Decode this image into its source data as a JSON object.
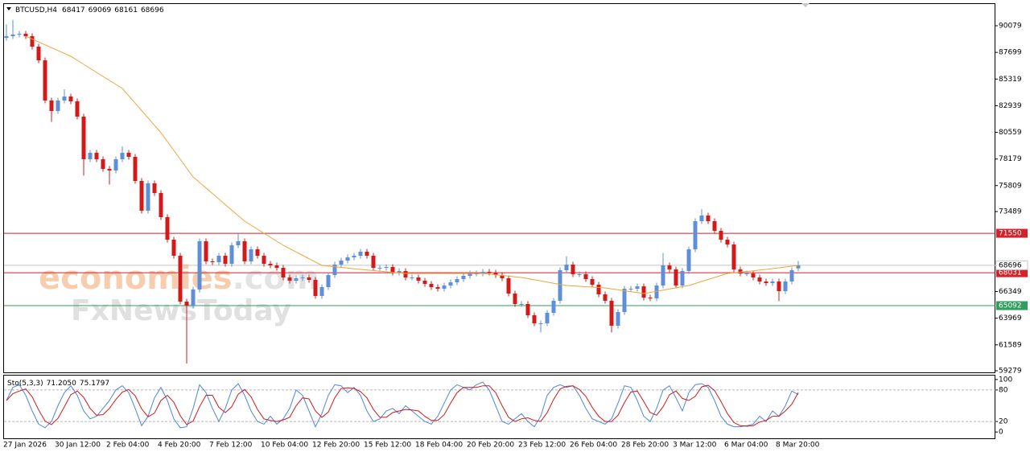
{
  "header": {
    "symbol": "BTCUSD,H4"
  },
  "watermark": {
    "brand": "economies",
    "suffix": ".com",
    "subtitle": "FxNewsToday"
  },
  "chart_data": [
    {
      "type": "candlestick",
      "categories": [
        "27 Jan 2026",
        null,
        null,
        null,
        null,
        null,
        null,
        null,
        "30 Jan 12:00",
        null,
        null,
        null,
        null,
        null,
        null,
        null,
        "2 Feb 04:00",
        null,
        null,
        null,
        null,
        null,
        null,
        null,
        "4 Feb 20:00",
        null,
        null,
        null,
        null,
        null,
        null,
        null,
        "7 Feb 12:00",
        null,
        null,
        null,
        null,
        null,
        null,
        null,
        "10 Feb 04:00",
        null,
        null,
        null,
        null,
        null,
        null,
        null,
        "12 Feb 20:00",
        null,
        null,
        null,
        null,
        null,
        null,
        null,
        "15 Feb 12:00",
        null,
        null,
        null,
        null,
        null,
        null,
        null,
        "18 Feb 04:00",
        null,
        null,
        null,
        null,
        null,
        null,
        null,
        "20 Feb 20:00",
        null,
        null,
        null,
        null,
        null,
        null,
        null,
        "23 Feb 12:00",
        null,
        null,
        null,
        null,
        null,
        null,
        null,
        "26 Feb 04:00",
        null,
        null,
        null,
        null,
        null,
        null,
        null,
        "28 Feb 20:00",
        null,
        null,
        null,
        null,
        null,
        null,
        null,
        "3 Mar 12:00",
        null,
        null,
        null,
        null,
        null,
        null,
        null,
        "6 Mar 04:00",
        null,
        null,
        null,
        null,
        null,
        null,
        null,
        "8 Mar 20:00",
        null,
        null,
        null
      ],
      "open": [
        89000,
        89146,
        89290,
        89361,
        89146,
        88213,
        86992,
        83402,
        82469,
        83402,
        83761,
        83330,
        81966,
        78161,
        78735,
        78161,
        77299,
        77155,
        78161,
        78735,
        78376,
        76222,
        73565,
        76007,
        75145,
        72991,
        70981,
        69545,
        65452,
        65093,
        66529,
        70837,
        69042,
        68970,
        69545,
        68827,
        70478,
        70837,
        69042,
        70119,
        69545,
        68827,
        68683,
        68468,
        67606,
        67319,
        67534,
        67606,
        67391,
        65955,
        66744,
        67821,
        68755,
        69114,
        69401,
        69545,
        69904,
        69545,
        68468,
        68468,
        68539,
        68037,
        68180,
        67606,
        67606,
        67319,
        67032,
        66744,
        66601,
        66888,
        67175,
        67462,
        67750,
        67965,
        67965,
        68109,
        68037,
        67821,
        67534,
        66170,
        65237,
        65237,
        64231,
        63513,
        63513,
        64447,
        65524,
        68252,
        68755,
        67893,
        67893,
        67462,
        66960,
        66098,
        65524,
        63298,
        64519,
        66601,
        66601,
        66816,
        65811,
        65739,
        66888,
        68683,
        68324,
        66888,
        68180,
        70119,
        72632,
        73135,
        72632,
        71770,
        70981,
        70550,
        68324,
        67965,
        67965,
        67606,
        67247,
        67103,
        67247,
        66385,
        67247,
        68417
      ],
      "high": [
        90200,
        90600,
        89611,
        89611,
        89396,
        88463,
        87242,
        83652,
        83652,
        84400,
        84011,
        83580,
        82216,
        78985,
        78985,
        78411,
        77549,
        78411,
        79300,
        78985,
        78626,
        76472,
        76257,
        76257,
        75395,
        73241,
        71231,
        69795,
        65702,
        66779,
        71087,
        71087,
        69292,
        69795,
        69795,
        70728,
        71600,
        71087,
        70369,
        70369,
        69795,
        69077,
        68933,
        68718,
        67856,
        67784,
        67856,
        67856,
        67641,
        66994,
        68071,
        69005,
        69364,
        69651,
        69795,
        70154,
        70154,
        69795,
        68718,
        68789,
        68789,
        68430,
        68430,
        67856,
        67856,
        67569,
        67282,
        66994,
        67138,
        67425,
        67712,
        68000,
        68215,
        68215,
        68359,
        68359,
        68287,
        68071,
        67784,
        66420,
        65487,
        65487,
        64481,
        63763,
        64697,
        65774,
        68502,
        69500,
        69005,
        68143,
        68143,
        67712,
        67210,
        66348,
        65774,
        64769,
        66851,
        66851,
        67066,
        67066,
        66061,
        67138,
        69800,
        68933,
        68574,
        68430,
        70369,
        72882,
        73700,
        73385,
        72882,
        72020,
        71231,
        70800,
        68574,
        68215,
        68215,
        67856,
        67497,
        67497,
        67497,
        67497,
        68502,
        69069
      ],
      "low": [
        88750,
        88896,
        89040,
        88896,
        87963,
        86742,
        83152,
        81500,
        82219,
        83152,
        83080,
        81716,
        76700,
        77911,
        77911,
        77049,
        75900,
        76905,
        77911,
        78126,
        75972,
        73315,
        73315,
        74895,
        72741,
        70731,
        69295,
        65202,
        59923,
        64843,
        66279,
        68792,
        68720,
        68720,
        68577,
        68577,
        70228,
        68792,
        68792,
        69295,
        68577,
        68433,
        68218,
        67356,
        67069,
        67069,
        67284,
        67141,
        65705,
        65705,
        66494,
        67571,
        68505,
        68864,
        69151,
        69295,
        69295,
        68218,
        68218,
        68218,
        67787,
        67787,
        67356,
        67356,
        67069,
        66782,
        66494,
        66351,
        66351,
        66638,
        66925,
        67212,
        67500,
        67715,
        67715,
        67787,
        67571,
        67284,
        65920,
        64987,
        64987,
        63981,
        63263,
        62700,
        63263,
        64197,
        65274,
        68002,
        67643,
        67643,
        67212,
        66710,
        65848,
        65274,
        62700,
        63048,
        64269,
        66351,
        66351,
        65561,
        65489,
        65489,
        66638,
        68074,
        66638,
        66638,
        67930,
        69869,
        72382,
        72382,
        71520,
        70731,
        70300,
        68074,
        67715,
        67715,
        67356,
        66997,
        66853,
        66853,
        65500,
        66135,
        66997,
        68161
      ],
      "close": [
        89146,
        89290,
        89361,
        89146,
        88213,
        86992,
        83402,
        82469,
        83402,
        83761,
        83330,
        81966,
        78161,
        78735,
        78161,
        77299,
        77155,
        78161,
        78735,
        78376,
        76222,
        73565,
        76007,
        75145,
        72991,
        70981,
        69545,
        65452,
        65093,
        66529,
        70837,
        69042,
        68970,
        69545,
        68827,
        70478,
        70837,
        69042,
        70119,
        69545,
        68827,
        68683,
        68468,
        67606,
        67319,
        67534,
        67606,
        67391,
        65955,
        66744,
        67821,
        68755,
        69114,
        69401,
        69545,
        69904,
        69545,
        68468,
        68468,
        68539,
        68037,
        68180,
        67606,
        67606,
        67319,
        67032,
        66744,
        66601,
        66888,
        67175,
        67462,
        67750,
        67965,
        67965,
        68109,
        68037,
        67821,
        67534,
        66170,
        65237,
        65237,
        64231,
        63513,
        63513,
        64447,
        65524,
        68252,
        68755,
        67893,
        67893,
        67462,
        66960,
        66098,
        65524,
        63298,
        64519,
        66601,
        66601,
        66816,
        65811,
        65739,
        66888,
        68683,
        68324,
        66888,
        68180,
        70119,
        72632,
        73135,
        72632,
        71770,
        70981,
        70550,
        68324,
        67965,
        67965,
        67606,
        67247,
        67103,
        67247,
        66385,
        67247,
        68252,
        68696
      ],
      "up_color": "#5f8fd8",
      "down_color": "#d21a1a",
      "ylim": [
        59135,
        92089
      ],
      "yticks": [
        90079,
        87699,
        85319,
        82939,
        80559,
        78179,
        75809,
        73489,
        66349,
        63969,
        61589,
        59279
      ],
      "moving_average": {
        "color": "#f0a43a",
        "values": [
          null,
          null,
          null,
          89146,
          88890,
          88634,
          88377,
          88121,
          87864,
          87608,
          87351,
          86992,
          86633,
          86274,
          85915,
          85556,
          85197,
          84838,
          84479,
          83821,
          83163,
          82504,
          81846,
          81188,
          80530,
          79740,
          78950,
          78161,
          77371,
          76581,
          76087,
          75594,
          75100,
          74606,
          74113,
          73619,
          73126,
          72632,
          72273,
          71914,
          71555,
          71196,
          70837,
          70478,
          70179,
          69880,
          69581,
          69282,
          68983,
          68683,
          68623,
          68563,
          68503,
          68444,
          68384,
          68324,
          68273,
          68222,
          68170,
          68119,
          68068,
          68016,
          67965,
          67965,
          67965,
          67965,
          67965,
          67965,
          67965,
          67965,
          67965,
          67965,
          67965,
          67965,
          67965,
          67905,
          67845,
          67785,
          67726,
          67666,
          67606,
          67503,
          67401,
          67298,
          67195,
          67093,
          66990,
          66888,
          66852,
          66816,
          66780,
          66744,
          66708,
          66672,
          66588,
          66505,
          66421,
          66337,
          66254,
          66170,
          66273,
          66375,
          66478,
          66580,
          66683,
          66785,
          66888,
          67068,
          67247,
          67427,
          67606,
          67786,
          67965,
          68025,
          68085,
          68145,
          68204,
          68264,
          68324,
          68396,
          68468,
          68540,
          68611,
          68683
        ]
      },
      "levels": [
        {
          "value": 71550,
          "color": "#d3222a"
        },
        {
          "value": 68031,
          "color": "#d3222a"
        },
        {
          "value": 65092,
          "color": "#2f9e5e"
        }
      ],
      "last_price_color": "#c4c4c4"
    },
    {
      "type": "line",
      "title": "Sto(5,3,3)",
      "series": [
        {
          "color": "#4f86d9",
          "readout": "71.2050",
          "values": [
            60,
            85,
            90,
            70,
            40,
            15,
            8,
            20,
            50,
            75,
            88,
            70,
            40,
            25,
            30,
            45,
            60,
            80,
            88,
            75,
            45,
            12,
            30,
            65,
            85,
            60,
            25,
            8,
            10,
            45,
            90,
            75,
            45,
            20,
            45,
            80,
            92,
            70,
            40,
            20,
            15,
            30,
            15,
            25,
            45,
            80,
            70,
            40,
            10,
            35,
            70,
            90,
            88,
            75,
            85,
            70,
            40,
            20,
            25,
            40,
            45,
            35,
            50,
            40,
            30,
            20,
            15,
            30,
            55,
            80,
            90,
            85,
            80,
            90,
            95,
            80,
            50,
            20,
            15,
            25,
            35,
            20,
            10,
            30,
            70,
            85,
            90,
            85,
            88,
            70,
            45,
            25,
            20,
            15,
            25,
            55,
            88,
            85,
            60,
            30,
            20,
            45,
            80,
            88,
            65,
            40,
            75,
            90,
            92,
            85,
            60,
            30,
            15,
            10,
            10,
            12,
            15,
            30,
            20,
            40,
            30,
            50,
            78,
            71.205
          ]
        },
        {
          "color": "#d01818",
          "readout": "75.1797",
          "values": [
            60,
            73,
            78,
            82,
            67,
            42,
            21,
            14,
            26,
            48,
            71,
            78,
            66,
            45,
            32,
            33,
            45,
            62,
            76,
            81,
            69,
            44,
            29,
            36,
            60,
            70,
            57,
            31,
            14,
            21,
            48,
            70,
            70,
            47,
            37,
            48,
            72,
            81,
            67,
            43,
            25,
            22,
            20,
            23,
            28,
            50,
            65,
            63,
            40,
            28,
            38,
            65,
            83,
            84,
            83,
            77,
            65,
            43,
            28,
            28,
            37,
            40,
            43,
            42,
            40,
            30,
            22,
            22,
            33,
            55,
            75,
            85,
            85,
            85,
            88,
            88,
            75,
            50,
            28,
            20,
            25,
            27,
            22,
            20,
            37,
            62,
            82,
            87,
            88,
            81,
            68,
            47,
            30,
            20,
            20,
            32,
            56,
            76,
            78,
            58,
            37,
            32,
            48,
            71,
            78,
            64,
            60,
            68,
            86,
            89,
            79,
            58,
            35,
            18,
            12,
            11,
            12,
            19,
            22,
            30,
            30,
            40,
            53,
            75.1797
          ]
        }
      ],
      "ylim": [
        -12,
        109
      ],
      "yticks": [
        100,
        80,
        20,
        0
      ],
      "reference_lines": [
        80,
        20
      ],
      "reference_color": "#b5b5b5"
    }
  ]
}
